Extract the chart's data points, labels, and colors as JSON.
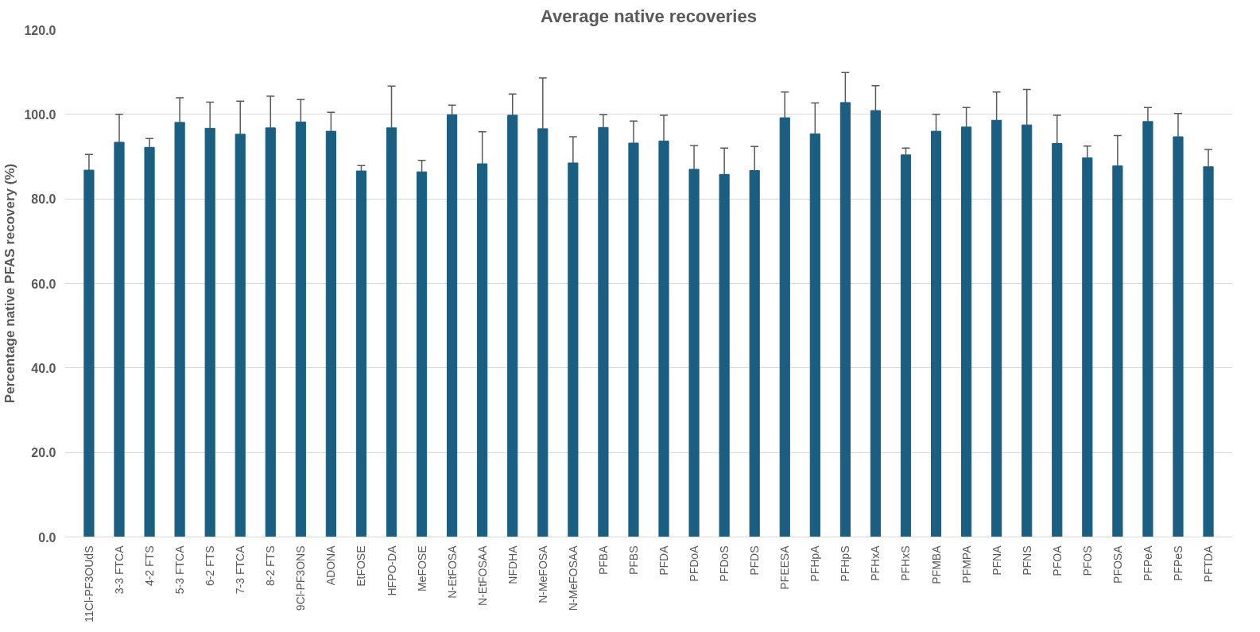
{
  "chart_data": {
    "type": "bar",
    "title": "Average native recoveries",
    "ylabel": "Percentage native PFAS recovery (%)",
    "categories": [
      "11Cl-PF3OUdS",
      "3-3 FTCA",
      "4-2 FTS",
      "5-3 FTCA",
      "6-2 FTS",
      "7-3 FTCA",
      "8-2 FTS",
      "9Cl-PF3ONS",
      "ADONA",
      "EtFOSE",
      "HFPO-DA",
      "MeFOSE",
      "N-EtFOSA",
      "N-EtFOSAA",
      "NFDHA",
      "N-MeFOSA",
      "N-MeFOSAA",
      "PFBA",
      "PFBS",
      "PFDA",
      "PFDoA",
      "PFDoS",
      "PFDS",
      "PFEESA",
      "PFHpA",
      "PFHpS",
      "PFHxA",
      "PFHxS",
      "PFMBA",
      "PFMPA",
      "PFNA",
      "PFNS",
      "PFOA",
      "PFOS",
      "PFOSA",
      "PFPeA",
      "PFPeS",
      "PFTDA"
    ],
    "values": [
      86.8,
      93.4,
      92.2,
      98.1,
      96.7,
      95.3,
      96.8,
      98.2,
      96.0,
      86.6,
      96.8,
      86.4,
      99.9,
      88.3,
      99.8,
      96.6,
      88.5,
      96.9,
      93.2,
      93.7,
      87.0,
      85.8,
      86.7,
      99.2,
      95.4,
      102.8,
      100.9,
      90.4,
      96.0,
      97.0,
      98.6,
      97.5,
      93.1,
      89.7,
      87.8,
      98.3,
      94.7,
      87.6
    ],
    "errors": [
      [
        86.8,
        90.5
      ],
      [
        93.4,
        100.0
      ],
      [
        92.2,
        94.3
      ],
      [
        98.1,
        103.9
      ],
      [
        96.7,
        102.9
      ],
      [
        95.3,
        103.1
      ],
      [
        96.8,
        104.3
      ],
      [
        98.2,
        103.5
      ],
      [
        96.0,
        100.5
      ],
      [
        86.6,
        87.9
      ],
      [
        96.8,
        106.7
      ],
      [
        86.4,
        89.1
      ],
      [
        99.9,
        102.2
      ],
      [
        88.3,
        95.9
      ],
      [
        99.8,
        104.8
      ],
      [
        96.6,
        108.6
      ],
      [
        88.5,
        94.7
      ],
      [
        96.9,
        99.9
      ],
      [
        93.2,
        98.4
      ],
      [
        93.7,
        99.8
      ],
      [
        87.0,
        92.6
      ],
      [
        85.8,
        92.0
      ],
      [
        86.7,
        92.4
      ],
      [
        99.2,
        105.3
      ],
      [
        95.4,
        102.7
      ],
      [
        102.8,
        109.9
      ],
      [
        100.9,
        106.8
      ],
      [
        90.4,
        92.0
      ],
      [
        96.0,
        100.0
      ],
      [
        97.0,
        101.6
      ],
      [
        98.6,
        105.3
      ],
      [
        97.5,
        105.9
      ],
      [
        93.1,
        99.8
      ],
      [
        89.7,
        92.5
      ],
      [
        87.8,
        95.0
      ],
      [
        98.3,
        101.6
      ],
      [
        94.7,
        100.2
      ],
      [
        87.6,
        91.7
      ]
    ],
    "color": "#1a5f82",
    "ylim": [
      0,
      120
    ],
    "yticks": [
      {
        "value": 0,
        "label": "0.0"
      },
      {
        "value": 20,
        "label": "20.0"
      },
      {
        "value": 40,
        "label": "40.0"
      },
      {
        "value": 60,
        "label": "60.0"
      },
      {
        "value": 80,
        "label": "80.0"
      },
      {
        "value": 100,
        "label": "100.0"
      },
      {
        "value": 120,
        "label": "120.0"
      }
    ],
    "grid": "y"
  }
}
